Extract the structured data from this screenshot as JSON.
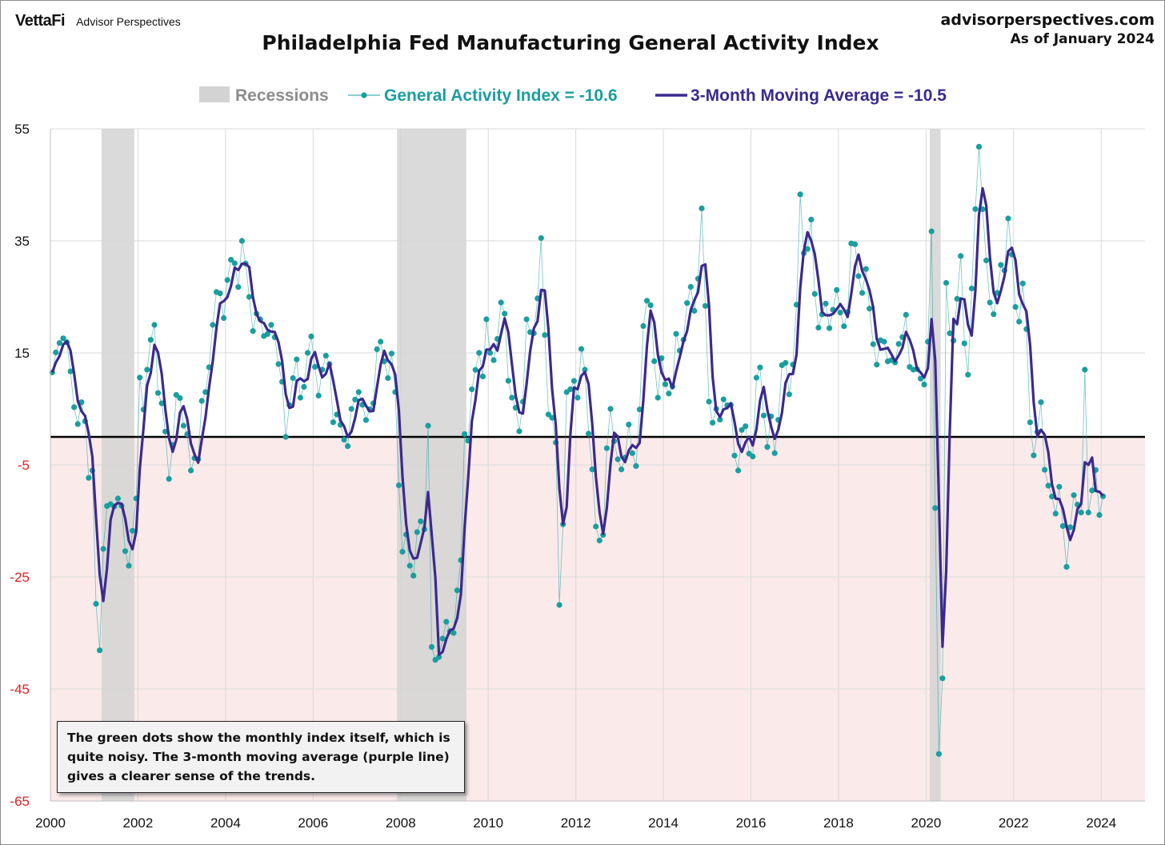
{
  "header": {
    "brand_logo": "VettaFi",
    "brand_name": "Advisor Perspectives",
    "site_url": "advisorperspectives.com",
    "as_of": "As of January 2024"
  },
  "note": "The green dots show the monthly  index itself, which is quite noisy. The 3-month moving average (purple line) gives a clearer sense of the trends.",
  "colors": {
    "index": "#1a9e9e",
    "moving_average": "#3b2a8c",
    "recession": "#d3d3d3",
    "negative_zone": "#fbeaea",
    "negative_tick": "#e02020",
    "zero_line": "#000000"
  },
  "chart_data": {
    "type": "line",
    "title": "Philadelphia Fed Manufacturing General Activity Index",
    "legend": {
      "position": "top",
      "recessions": "Recessions",
      "index": "General Activity Index = -10.6",
      "ma": "3-Month Moving Average = -10.5"
    },
    "ylim": [
      -65,
      55
    ],
    "yticks": [
      55,
      35,
      15,
      -5,
      -25,
      -45,
      -65
    ],
    "xlim": [
      2000,
      2025
    ],
    "xticks": [
      "2000",
      "2002",
      "2004",
      "2006",
      "2008",
      "2010",
      "2012",
      "2014",
      "2016",
      "2018",
      "2020",
      "2022",
      "2024"
    ],
    "grid": true,
    "reference_line": 0,
    "recessions": [
      {
        "start": "2001-03",
        "end": "2001-11"
      },
      {
        "start": "2007-12",
        "end": "2009-06"
      },
      {
        "start": "2020-02",
        "end": "2020-04"
      }
    ],
    "start_month": "2000-01",
    "anchors": [
      [
        "2000-01",
        11.5
      ],
      [
        "2000-04",
        17.6
      ],
      [
        "2000-07",
        5.3
      ],
      [
        "2000-10",
        2.8
      ],
      [
        "2000-12",
        -6.0
      ],
      [
        "2001-01",
        -29.8
      ],
      [
        "2001-02",
        -38.1
      ],
      [
        "2001-03",
        -20.0
      ],
      [
        "2001-05",
        -12.0
      ],
      [
        "2001-07",
        -11.0
      ],
      [
        "2001-09",
        -20.4
      ],
      [
        "2001-10",
        -23.0
      ],
      [
        "2001-12",
        -11.0
      ],
      [
        "2002-01",
        10.6
      ],
      [
        "2002-03",
        12.0
      ],
      [
        "2002-05",
        20.0
      ],
      [
        "2002-07",
        6.0
      ],
      [
        "2002-09",
        -7.5
      ],
      [
        "2002-11",
        7.5
      ],
      [
        "2003-01",
        2.0
      ],
      [
        "2003-03",
        -6.0
      ],
      [
        "2003-05",
        -4.0
      ],
      [
        "2003-07",
        8.0
      ],
      [
        "2003-09",
        20.0
      ],
      [
        "2004-01",
        28.0
      ],
      [
        "2004-03",
        31.0
      ],
      [
        "2004-05",
        35.0
      ],
      [
        "2004-07",
        25.0
      ],
      [
        "2004-09",
        22.0
      ],
      [
        "2004-11",
        18.0
      ],
      [
        "2005-01",
        20.0
      ],
      [
        "2005-03",
        13.0
      ],
      [
        "2005-05",
        0.0
      ],
      [
        "2005-07",
        10.5
      ],
      [
        "2005-09",
        7.0
      ],
      [
        "2005-11",
        15.0
      ],
      [
        "2006-01",
        12.5
      ],
      [
        "2006-03",
        12.0
      ],
      [
        "2006-05",
        13.0
      ],
      [
        "2006-07",
        4.0
      ],
      [
        "2006-09",
        -0.5
      ],
      [
        "2006-11",
        5.0
      ],
      [
        "2007-01",
        8.0
      ],
      [
        "2007-03",
        3.0
      ],
      [
        "2007-05",
        6.0
      ],
      [
        "2007-07",
        17.0
      ],
      [
        "2007-09",
        10.5
      ],
      [
        "2007-11",
        8.0
      ],
      [
        "2008-01",
        -20.5
      ],
      [
        "2008-03",
        -23.0
      ],
      [
        "2008-05",
        -17.0
      ],
      [
        "2008-07",
        -16.5
      ],
      [
        "2008-08",
        2.0
      ],
      [
        "2008-09",
        -37.5
      ],
      [
        "2008-10",
        -39.8
      ],
      [
        "2008-12",
        -36.0
      ],
      [
        "2009-01",
        -33.0
      ],
      [
        "2009-03",
        -35.0
      ],
      [
        "2009-05",
        -22.0
      ],
      [
        "2009-06",
        0.5
      ],
      [
        "2009-08",
        8.5
      ],
      [
        "2009-10",
        15.0
      ],
      [
        "2010-01",
        15.0
      ],
      [
        "2010-03",
        17.5
      ],
      [
        "2010-05",
        22.0
      ],
      [
        "2010-07",
        7.0
      ],
      [
        "2010-09",
        1.0
      ],
      [
        "2010-11",
        21.0
      ],
      [
        "2011-01",
        18.5
      ],
      [
        "2011-03",
        35.5
      ],
      [
        "2011-05",
        4.0
      ],
      [
        "2011-07",
        -1.0
      ],
      [
        "2011-08",
        -30.0
      ],
      [
        "2011-10",
        8.0
      ],
      [
        "2011-12",
        10.0
      ],
      [
        "2012-01",
        7.0
      ],
      [
        "2012-03",
        12.0
      ],
      [
        "2012-05",
        -5.8
      ],
      [
        "2012-06",
        -16.0
      ],
      [
        "2012-08",
        -17.5
      ],
      [
        "2012-10",
        5.0
      ],
      [
        "2012-12",
        -4.0
      ],
      [
        "2013-01",
        -5.8
      ],
      [
        "2013-03",
        2.2
      ],
      [
        "2013-05",
        -5.2
      ],
      [
        "2013-07",
        19.8
      ],
      [
        "2013-09",
        23.5
      ],
      [
        "2013-11",
        7.0
      ],
      [
        "2014-01",
        9.4
      ],
      [
        "2014-03",
        9.0
      ],
      [
        "2014-05",
        15.4
      ],
      [
        "2014-07",
        23.9
      ],
      [
        "2014-09",
        22.5
      ],
      [
        "2014-11",
        40.8
      ],
      [
        "2015-01",
        6.3
      ],
      [
        "2015-03",
        5.0
      ],
      [
        "2015-05",
        6.7
      ],
      [
        "2015-07",
        5.7
      ],
      [
        "2015-09",
        -6.0
      ],
      [
        "2015-11",
        1.9
      ],
      [
        "2016-01",
        -3.5
      ],
      [
        "2016-03",
        12.4
      ],
      [
        "2016-05",
        -1.8
      ],
      [
        "2016-07",
        -2.9
      ],
      [
        "2016-09",
        12.8
      ],
      [
        "2016-11",
        7.6
      ],
      [
        "2017-01",
        23.6
      ],
      [
        "2017-02",
        43.3
      ],
      [
        "2017-03",
        32.8
      ],
      [
        "2017-05",
        38.8
      ],
      [
        "2017-07",
        19.5
      ],
      [
        "2017-09",
        23.8
      ],
      [
        "2017-11",
        22.7
      ],
      [
        "2018-01",
        22.2
      ],
      [
        "2018-03",
        22.3
      ],
      [
        "2018-05",
        34.4
      ],
      [
        "2018-07",
        25.7
      ],
      [
        "2018-09",
        22.9
      ],
      [
        "2018-11",
        12.9
      ],
      [
        "2019-01",
        17.0
      ],
      [
        "2019-03",
        13.7
      ],
      [
        "2019-05",
        16.6
      ],
      [
        "2019-07",
        21.8
      ],
      [
        "2019-09",
        12.0
      ],
      [
        "2019-11",
        10.4
      ],
      [
        "2020-01",
        17.0
      ],
      [
        "2020-02",
        36.7
      ],
      [
        "2020-03",
        -12.7
      ],
      [
        "2020-04",
        -56.6
      ],
      [
        "2020-05",
        -43.1
      ],
      [
        "2020-06",
        27.5
      ],
      [
        "2020-08",
        17.2
      ],
      [
        "2020-10",
        32.3
      ],
      [
        "2020-12",
        11.1
      ],
      [
        "2021-01",
        26.5
      ],
      [
        "2021-03",
        51.8
      ],
      [
        "2021-05",
        31.5
      ],
      [
        "2021-07",
        21.9
      ],
      [
        "2021-09",
        30.7
      ],
      [
        "2021-11",
        39.0
      ],
      [
        "2022-01",
        23.2
      ],
      [
        "2022-03",
        27.4
      ],
      [
        "2022-05",
        2.6
      ],
      [
        "2022-06",
        -3.3
      ],
      [
        "2022-08",
        6.2
      ],
      [
        "2022-10",
        -8.7
      ],
      [
        "2022-12",
        -13.7
      ],
      [
        "2023-01",
        -8.9
      ],
      [
        "2023-03",
        -23.2
      ],
      [
        "2023-05",
        -10.4
      ],
      [
        "2023-07",
        -13.5
      ],
      [
        "2023-08",
        12.0
      ],
      [
        "2023-09",
        -13.5
      ],
      [
        "2023-11",
        -5.9
      ],
      [
        "2024-01",
        -10.6
      ]
    ],
    "index_final": -10.6,
    "ma_final": -10.5
  }
}
